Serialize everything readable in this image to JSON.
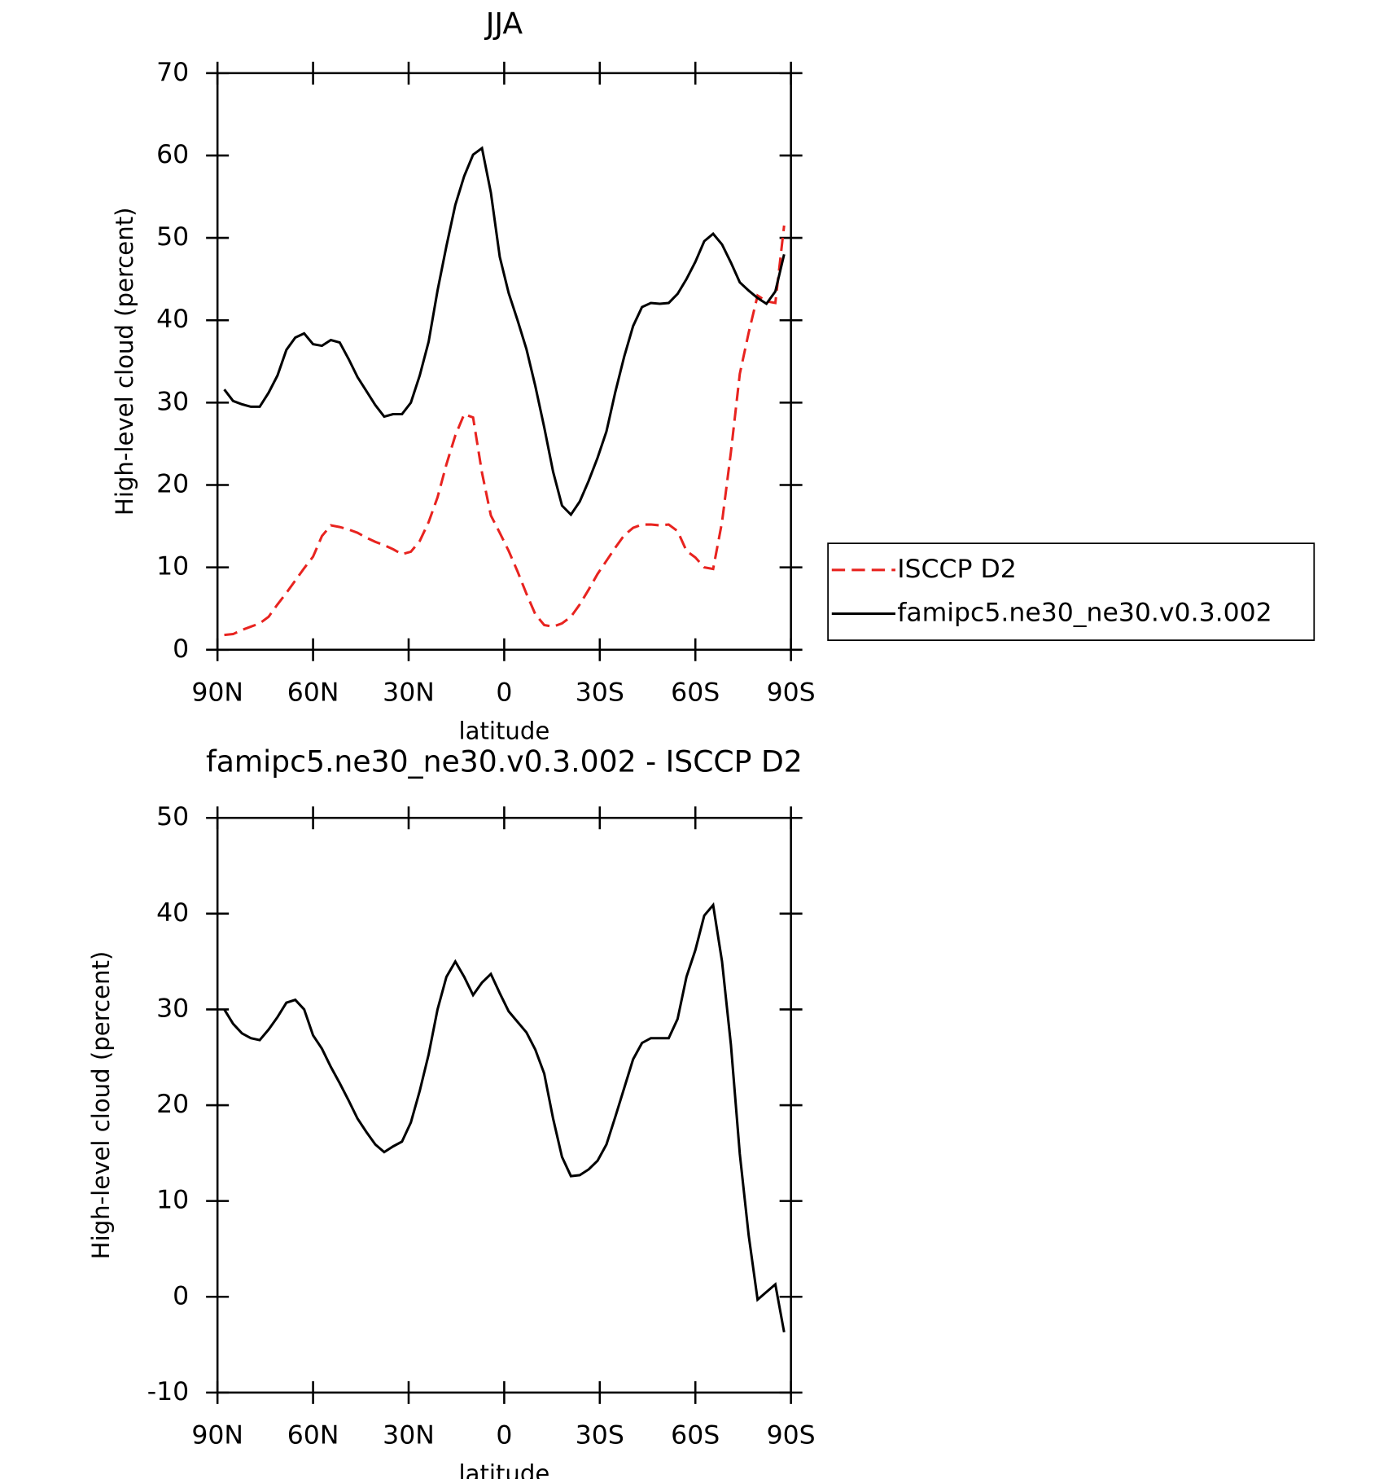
{
  "chart_data": [
    {
      "type": "line",
      "title": "JJA",
      "xlabel": "latitude",
      "ylabel": "High-level cloud (percent)",
      "x": [
        87.86,
        85.1,
        82.31,
        79.53,
        76.74,
        73.95,
        71.16,
        68.37,
        65.58,
        62.79,
        60.0,
        57.21,
        54.42,
        51.63,
        48.84,
        46.04,
        43.25,
        40.46,
        37.67,
        34.88,
        32.09,
        29.3,
        26.51,
        23.72,
        20.93,
        18.14,
        15.35,
        12.56,
        9.77,
        6.98,
        4.19,
        1.4,
        -1.4,
        -4.19,
        -6.98,
        -9.77,
        -12.56,
        -15.35,
        -18.14,
        -20.93,
        -23.72,
        -26.51,
        -29.3,
        -32.09,
        -34.88,
        -37.67,
        -40.46,
        -43.25,
        -46.04,
        -48.84,
        -51.63,
        -54.42,
        -57.21,
        -60.0,
        -62.79,
        -65.58,
        -68.37,
        -71.16,
        -73.95,
        -76.74,
        -79.53,
        -82.31,
        -85.1,
        -87.86
      ],
      "series": [
        {
          "name": "ISCCP D2",
          "color": "#e8231f",
          "line_style": "dashed",
          "values": [
            1.8,
            1.9,
            2.4,
            2.8,
            3.2,
            4,
            5.5,
            6.9,
            8.4,
            9.9,
            11.3,
            13.8,
            15.1,
            14.9,
            14.6,
            14.2,
            13.6,
            13.1,
            12.7,
            12.2,
            11.6,
            11.9,
            13.2,
            15.5,
            18.5,
            22.5,
            26,
            28.6,
            28.2,
            21.5,
            16.3,
            14.2,
            12,
            9.5,
            6.8,
            4.3,
            3,
            2.8,
            3.2,
            4,
            5.5,
            7.3,
            9.2,
            10.8,
            12.4,
            13.9,
            14.8,
            15.2,
            15.2,
            15.1,
            15.2,
            14.4,
            12,
            11.2,
            10,
            9.8,
            15.5,
            24,
            33.5,
            38.5,
            43,
            42.3,
            42.1,
            51.5
          ]
        },
        {
          "name": "famipc5.ne30_ne30.v0.3.002",
          "color": "#000000",
          "line_style": "solid",
          "values": [
            31.6,
            30.2,
            29.8,
            29.5,
            29.5,
            31.2,
            33.3,
            36.4,
            37.9,
            38.4,
            37.1,
            36.9,
            37.6,
            37.3,
            35.3,
            33.1,
            31.4,
            29.7,
            28.3,
            28.6,
            28.6,
            30,
            33.3,
            37.4,
            43.6,
            49,
            54,
            57.5,
            60.1,
            60.9,
            55.5,
            47.7,
            43.3,
            40,
            36.5,
            32,
            27,
            21.6,
            17.5,
            16.4,
            18,
            20.5,
            23.3,
            26.5,
            31.3,
            35.6,
            39.3,
            41.6,
            42.1,
            42,
            42.1,
            43.2,
            45,
            47.1,
            49.6,
            50.5,
            49.2,
            47,
            44.6,
            43.6,
            42.7,
            42,
            43.5,
            48
          ]
        }
      ],
      "xlim": [
        90,
        -90
      ],
      "xticks": [
        {
          "value": 90,
          "label": "90N"
        },
        {
          "value": 60,
          "label": "60N"
        },
        {
          "value": 30,
          "label": "30N"
        },
        0,
        {
          "value": -30,
          "label": "30S"
        },
        {
          "value": -60,
          "label": "60S"
        },
        {
          "value": -90,
          "label": "90S"
        }
      ],
      "ylim": [
        0,
        70
      ],
      "yticks": [
        0,
        10,
        20,
        30,
        40,
        50,
        60,
        70
      ],
      "legend": "outside-right"
    },
    {
      "type": "line",
      "title": "famipc5.ne30_ne30.v0.3.002 - ISCCP D2",
      "xlabel": "latitude",
      "ylabel": "High-level cloud (percent)",
      "x": [
        87.86,
        85.1,
        82.31,
        79.53,
        76.74,
        73.95,
        71.16,
        68.37,
        65.58,
        62.79,
        60.0,
        57.21,
        54.42,
        51.63,
        48.84,
        46.04,
        43.25,
        40.46,
        37.67,
        34.88,
        32.09,
        29.3,
        26.51,
        23.72,
        20.93,
        18.14,
        15.35,
        12.56,
        9.77,
        6.98,
        4.19,
        1.4,
        -1.4,
        -4.19,
        -6.98,
        -9.77,
        -12.56,
        -15.35,
        -18.14,
        -20.93,
        -23.72,
        -26.51,
        -29.3,
        -32.09,
        -34.88,
        -37.67,
        -40.46,
        -43.25,
        -46.04,
        -48.84,
        -51.63,
        -54.42,
        -57.21,
        -60.0,
        -62.79,
        -65.58,
        -68.37,
        -71.16,
        -73.95,
        -76.74,
        -79.53,
        -82.31,
        -85.1,
        -87.86
      ],
      "series": [
        {
          "color": "#000000",
          "line_style": "solid",
          "values": [
            30,
            28.5,
            27.5,
            27,
            26.8,
            27.9,
            29.2,
            30.7,
            31,
            30,
            27.3,
            25.9,
            24,
            22.3,
            20.5,
            18.6,
            17.2,
            15.9,
            15.1,
            15.7,
            16.2,
            18.2,
            21.5,
            25.3,
            30,
            33.4,
            35,
            33.4,
            31.5,
            32.8,
            33.7,
            31.7,
            29.8,
            28.7,
            27.6,
            25.8,
            23.3,
            18.6,
            14.6,
            12.6,
            12.7,
            13.3,
            14.2,
            15.9,
            18.8,
            21.8,
            24.8,
            26.5,
            27,
            27,
            27,
            29,
            33.4,
            36.2,
            39.8,
            40.9,
            35,
            26.3,
            14.9,
            6.4,
            -0.3,
            0.5,
            1.3,
            -3.7
          ]
        }
      ],
      "xlim": [
        90,
        -90
      ],
      "xticks": [
        {
          "value": 90,
          "label": "90N"
        },
        {
          "value": 60,
          "label": "60N"
        },
        {
          "value": 30,
          "label": "30N"
        },
        0,
        {
          "value": -30,
          "label": "30S"
        },
        {
          "value": -60,
          "label": "60S"
        },
        {
          "value": -90,
          "label": "90S"
        }
      ],
      "ylim": [
        -10,
        50
      ],
      "yticks": [
        -10,
        0,
        10,
        20,
        30,
        40,
        50
      ]
    }
  ]
}
